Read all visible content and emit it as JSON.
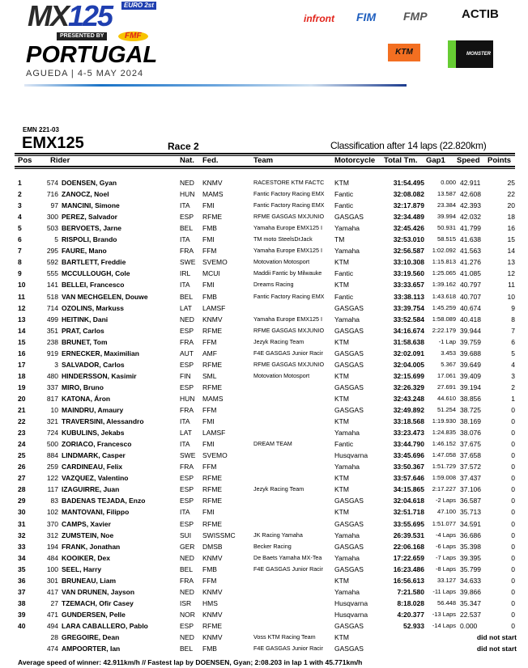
{
  "event": {
    "series_logo": "MX125",
    "euro_badge": "EURO 2st",
    "presented_by": "PRESENTED BY",
    "fmf_logo": "FMF",
    "country": "PORTUGAL",
    "location_date": "AGUEDA | 4-5 MAY 2024",
    "sponsors": [
      "infront",
      "FIM",
      "FMP",
      "ACTIB",
      "KTM",
      "MONSTER"
    ],
    "sponsor_colors": {
      "infront": "#e2231a",
      "FIM": "#1f5fbf",
      "FMP": "#555555",
      "ACTIB": "#111111",
      "KTM": "#f36f21",
      "MONSTER": "#111111"
    }
  },
  "report": {
    "code": "EMN 221-03",
    "class": "EMX125",
    "race": "Race 2",
    "classification": "Classification after 14 laps (22.820km)"
  },
  "columns": {
    "pos": "Pos",
    "rider": "Rider",
    "nat": "Nat.",
    "fed": "Fed.",
    "team": "Team",
    "motorcycle": "Motorcycle",
    "total": "Total Tm.",
    "gap": "Gap1",
    "speed": "Speed",
    "points": "Points"
  },
  "rows": [
    {
      "pos": "1",
      "num": "574",
      "rider": "DOENSEN, Gyan",
      "nat": "NED",
      "fed": "KNMV",
      "team": "RACESTORE KTM FACTC",
      "moto": "KTM",
      "total": "31:54.495",
      "gap": "0.000",
      "speed": "42.911",
      "points": "25"
    },
    {
      "pos": "2",
      "num": "716",
      "rider": "ZANOCZ, Noel",
      "nat": "HUN",
      "fed": "MAMS",
      "team": "Fantic Factory Racing EMX",
      "moto": "Fantic",
      "total": "32:08.082",
      "gap": "13.587",
      "speed": "42.608",
      "points": "22"
    },
    {
      "pos": "3",
      "num": "97",
      "rider": "MANCINI, Simone",
      "nat": "ITA",
      "fed": "FMI",
      "team": "Fantic Factory Racing EMX",
      "moto": "Fantic",
      "total": "32:17.879",
      "gap": "23.384",
      "speed": "42.393",
      "points": "20"
    },
    {
      "pos": "4",
      "num": "300",
      "rider": "PEREZ, Salvador",
      "nat": "ESP",
      "fed": "RFME",
      "team": "RFME GASGAS MXJUNIO",
      "moto": "GASGAS",
      "total": "32:34.489",
      "gap": "39.994",
      "speed": "42.032",
      "points": "18"
    },
    {
      "pos": "5",
      "num": "503",
      "rider": "BERVOETS, Jarne",
      "nat": "BEL",
      "fed": "FMB",
      "team": "Yamaha Europe EMX125 I",
      "moto": "Yamaha",
      "total": "32:45.426",
      "gap": "50.931",
      "speed": "41.799",
      "points": "16"
    },
    {
      "pos": "6",
      "num": "5",
      "rider": "RISPOLI, Brando",
      "nat": "ITA",
      "fed": "FMI",
      "team": "TM moto SteelsDrJack",
      "moto": "TM",
      "total": "32:53.010",
      "gap": "58.515",
      "speed": "41.638",
      "points": "15"
    },
    {
      "pos": "7",
      "num": "295",
      "rider": "FAURE, Mano",
      "nat": "FRA",
      "fed": "FFM",
      "team": "Yamaha Europe EMX125 I",
      "moto": "Yamaha",
      "total": "32:56.587",
      "gap": "1:02.092",
      "speed": "41.563",
      "points": "14"
    },
    {
      "pos": "8",
      "num": "592",
      "rider": "BARTLETT, Freddie",
      "nat": "SWE",
      "fed": "SVEMO",
      "team": "Motovation Motosport",
      "moto": "KTM",
      "total": "33:10.308",
      "gap": "1:15.813",
      "speed": "41.276",
      "points": "13"
    },
    {
      "pos": "9",
      "num": "555",
      "rider": "MCCULLOUGH, Cole",
      "nat": "IRL",
      "fed": "MCUI",
      "team": "Maddii Fantic by Milwauke",
      "moto": "Fantic",
      "total": "33:19.560",
      "gap": "1:25.065",
      "speed": "41.085",
      "points": "12"
    },
    {
      "pos": "10",
      "num": "141",
      "rider": "BELLEI, Francesco",
      "nat": "ITA",
      "fed": "FMI",
      "team": "Dreams Racing",
      "moto": "KTM",
      "total": "33:33.657",
      "gap": "1:39.162",
      "speed": "40.797",
      "points": "11"
    },
    {
      "pos": "11",
      "num": "518",
      "rider": "VAN MECHGELEN, Douwe",
      "nat": "BEL",
      "fed": "FMB",
      "team": "Fantic Factory Racing EMX",
      "moto": "Fantic",
      "total": "33:38.113",
      "gap": "1:43.618",
      "speed": "40.707",
      "points": "10"
    },
    {
      "pos": "12",
      "num": "714",
      "rider": "OZOLINS, Markuss",
      "nat": "LAT",
      "fed": "LAMSF",
      "team": "",
      "moto": "GASGAS",
      "total": "33:39.754",
      "gap": "1:45.259",
      "speed": "40.674",
      "points": "9"
    },
    {
      "pos": "13",
      "num": "499",
      "rider": "HEITINK, Dani",
      "nat": "NED",
      "fed": "KNMV",
      "team": "Yamaha Europe EMX125 I",
      "moto": "Yamaha",
      "total": "33:52.584",
      "gap": "1:58.089",
      "speed": "40.418",
      "points": "8"
    },
    {
      "pos": "14",
      "num": "351",
      "rider": "PRAT, Carlos",
      "nat": "ESP",
      "fed": "RFME",
      "team": "RFME GASGAS MXJUNIO",
      "moto": "GASGAS",
      "total": "34:16.674",
      "gap": "2:22.179",
      "speed": "39.944",
      "points": "7"
    },
    {
      "pos": "15",
      "num": "238",
      "rider": "BRUNET, Tom",
      "nat": "FRA",
      "fed": "FFM",
      "team": "Jezyk Racing Team",
      "moto": "KTM",
      "total": "31:58.638",
      "gap": "-1 Lap",
      "speed": "39.759",
      "points": "6"
    },
    {
      "pos": "16",
      "num": "919",
      "rider": "ERNECKER, Maximilian",
      "nat": "AUT",
      "fed": "AMF",
      "team": "F4E GASGAS Junior Racir",
      "moto": "GASGAS",
      "total": "32:02.091",
      "gap": "3.453",
      "speed": "39.688",
      "points": "5"
    },
    {
      "pos": "17",
      "num": "3",
      "rider": "SALVADOR, Carlos",
      "nat": "ESP",
      "fed": "RFME",
      "team": "RFME GASGAS MXJUNIO",
      "moto": "GASGAS",
      "total": "32:04.005",
      "gap": "5.367",
      "speed": "39.649",
      "points": "4"
    },
    {
      "pos": "18",
      "num": "480",
      "rider": "HINDERSSON, Kasimir",
      "nat": "FIN",
      "fed": "SML",
      "team": "Motovation Motosport",
      "moto": "KTM",
      "total": "32:15.699",
      "gap": "17.061",
      "speed": "39.409",
      "points": "3"
    },
    {
      "pos": "19",
      "num": "337",
      "rider": "MIRO, Bruno",
      "nat": "ESP",
      "fed": "RFME",
      "team": "",
      "moto": "GASGAS",
      "total": "32:26.329",
      "gap": "27.691",
      "speed": "39.194",
      "points": "2"
    },
    {
      "pos": "20",
      "num": "817",
      "rider": "KATONA, Áron",
      "nat": "HUN",
      "fed": "MAMS",
      "team": "",
      "moto": "KTM",
      "total": "32:43.248",
      "gap": "44.610",
      "speed": "38.856",
      "points": "1"
    },
    {
      "pos": "21",
      "num": "10",
      "rider": "MAINDRU, Amaury",
      "nat": "FRA",
      "fed": "FFM",
      "team": "",
      "moto": "GASGAS",
      "total": "32:49.892",
      "gap": "51.254",
      "speed": "38.725",
      "points": "0"
    },
    {
      "pos": "22",
      "num": "321",
      "rider": "TRAVERSINI, Alessandro",
      "nat": "ITA",
      "fed": "FMI",
      "team": "",
      "moto": "KTM",
      "total": "33:18.568",
      "gap": "1:19.930",
      "speed": "38.169",
      "points": "0"
    },
    {
      "pos": "23",
      "num": "724",
      "rider": "KUBULINS, Jekabs",
      "nat": "LAT",
      "fed": "LAMSF",
      "team": "",
      "moto": "Yamaha",
      "total": "33:23.473",
      "gap": "1:24.835",
      "speed": "38.076",
      "points": "0"
    },
    {
      "pos": "24",
      "num": "500",
      "rider": "ZORIACO, Francesco",
      "nat": "ITA",
      "fed": "FMI",
      "team": "DREAM TEAM",
      "moto": "Fantic",
      "total": "33:44.790",
      "gap": "1:46.152",
      "speed": "37.675",
      "points": "0"
    },
    {
      "pos": "25",
      "num": "884",
      "rider": "LINDMARK, Casper",
      "nat": "SWE",
      "fed": "SVEMO",
      "team": "",
      "moto": "Husqvarna",
      "total": "33:45.696",
      "gap": "1:47.058",
      "speed": "37.658",
      "points": "0"
    },
    {
      "pos": "26",
      "num": "259",
      "rider": "CARDINEAU, Felix",
      "nat": "FRA",
      "fed": "FFM",
      "team": "",
      "moto": "Yamaha",
      "total": "33:50.367",
      "gap": "1:51.729",
      "speed": "37.572",
      "points": "0"
    },
    {
      "pos": "27",
      "num": "122",
      "rider": "VAZQUEZ, Valentino",
      "nat": "ESP",
      "fed": "RFME",
      "team": "",
      "moto": "KTM",
      "total": "33:57.646",
      "gap": "1:59.008",
      "speed": "37.437",
      "points": "0"
    },
    {
      "pos": "28",
      "num": "117",
      "rider": "IZAGUIRRE, Juan",
      "nat": "ESP",
      "fed": "RFME",
      "team": "Jezyk Racing Team",
      "moto": "KTM",
      "total": "34:15.865",
      "gap": "2:17.227",
      "speed": "37.106",
      "points": "0"
    },
    {
      "pos": "29",
      "num": "83",
      "rider": "BADENAS TEJADA, Enzo",
      "nat": "ESP",
      "fed": "RFME",
      "team": "",
      "moto": "GASGAS",
      "total": "32:04.618",
      "gap": "-2 Laps",
      "speed": "36.587",
      "points": "0"
    },
    {
      "pos": "30",
      "num": "102",
      "rider": "MANTOVANI, Filippo",
      "nat": "ITA",
      "fed": "FMI",
      "team": "",
      "moto": "KTM",
      "total": "32:51.718",
      "gap": "47.100",
      "speed": "35.713",
      "points": "0"
    },
    {
      "pos": "31",
      "num": "370",
      "rider": "CAMPS, Xavier",
      "nat": "ESP",
      "fed": "RFME",
      "team": "",
      "moto": "GASGAS",
      "total": "33:55.695",
      "gap": "1:51.077",
      "speed": "34.591",
      "points": "0"
    },
    {
      "pos": "32",
      "num": "312",
      "rider": "ZUMSTEIN, Noe",
      "nat": "SUI",
      "fed": "SWISSMC",
      "team": "JK Racing Yamaha",
      "moto": "Yamaha",
      "total": "26:39.531",
      "gap": "-4 Laps",
      "speed": "36.686",
      "points": "0"
    },
    {
      "pos": "33",
      "num": "194",
      "rider": "FRANK, Jonathan",
      "nat": "GER",
      "fed": "DMSB",
      "team": "Becker Racing",
      "moto": "GASGAS",
      "total": "22:06.168",
      "gap": "-6 Laps",
      "speed": "35.398",
      "points": "0"
    },
    {
      "pos": "34",
      "num": "484",
      "rider": "KOOIKER, Dex",
      "nat": "NED",
      "fed": "KNMV",
      "team": "De Baets Yamaha MX-Tea",
      "moto": "Yamaha",
      "total": "17:22.659",
      "gap": "-7 Laps",
      "speed": "39.395",
      "points": "0"
    },
    {
      "pos": "35",
      "num": "100",
      "rider": "SEEL, Harry",
      "nat": "BEL",
      "fed": "FMB",
      "team": "F4E GASGAS Junior Racir",
      "moto": "GASGAS",
      "total": "16:23.486",
      "gap": "-8 Laps",
      "speed": "35.799",
      "points": "0"
    },
    {
      "pos": "36",
      "num": "301",
      "rider": "BRUNEAU, Liam",
      "nat": "FRA",
      "fed": "FFM",
      "team": "",
      "moto": "KTM",
      "total": "16:56.613",
      "gap": "33.127",
      "speed": "34.633",
      "points": "0"
    },
    {
      "pos": "37",
      "num": "417",
      "rider": "VAN DRUNEN, Jayson",
      "nat": "NED",
      "fed": "KNMV",
      "team": "",
      "moto": "Yamaha",
      "total": "7:21.580",
      "gap": "-11 Laps",
      "speed": "39.866",
      "points": "0"
    },
    {
      "pos": "38",
      "num": "27",
      "rider": "TZEMACH, Ofir Casey",
      "nat": "ISR",
      "fed": "HMS",
      "team": "",
      "moto": "Husqvarna",
      "total": "8:18.028",
      "gap": "56.448",
      "speed": "35.347",
      "points": "0"
    },
    {
      "pos": "39",
      "num": "471",
      "rider": "GUNDERSEN, Pelle",
      "nat": "NOR",
      "fed": "KNMV",
      "team": "",
      "moto": "Husqvarna",
      "total": "4:20.377",
      "gap": "-13 Laps",
      "speed": "22.537",
      "points": "0"
    },
    {
      "pos": "40",
      "num": "494",
      "rider": "LARA CABALLERO, Pablo",
      "nat": "ESP",
      "fed": "RFME",
      "team": "",
      "moto": "GASGAS",
      "total": "52.933",
      "gap": "-14 Laps",
      "speed": "0.000",
      "points": "0"
    },
    {
      "pos": "",
      "num": "28",
      "rider": "GREGOIRE, Dean",
      "nat": "NED",
      "fed": "KNMV",
      "team": "Voss KTM Racing Team",
      "moto": "KTM",
      "status": "did not start"
    },
    {
      "pos": "",
      "num": "474",
      "rider": "AMPOORTER, Ian",
      "nat": "BEL",
      "fed": "FMB",
      "team": "F4E GASGAS Junior Racir",
      "moto": "GASGAS",
      "status": "did not start"
    }
  ],
  "footer": "Average speed of winner: 42.911km/h   //   Fastest lap by DOENSEN, Gyan; 2:08.203 in lap 1 with 45.771km/h"
}
